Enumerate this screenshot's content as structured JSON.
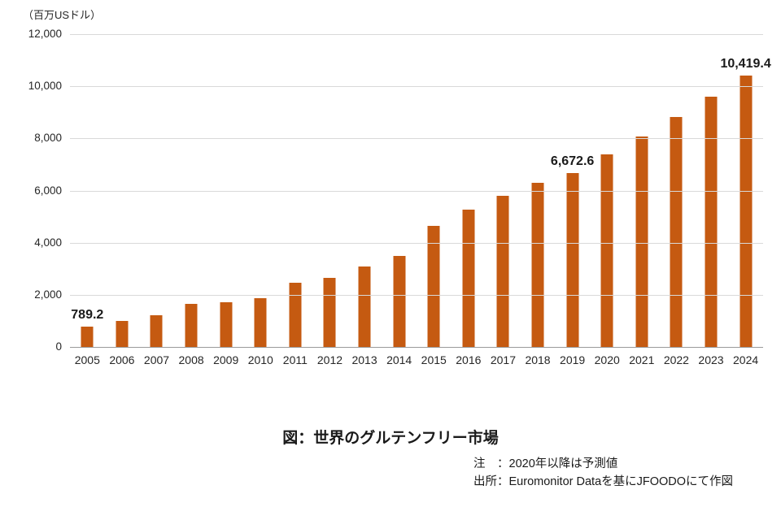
{
  "chart_data": {
    "type": "bar",
    "title": "図：世界のグルテンフリー市場",
    "unit_label": "（百万USドル）",
    "xlabel": "",
    "ylabel": "百万USドル",
    "categories": [
      "2005",
      "2006",
      "2007",
      "2008",
      "2009",
      "2010",
      "2011",
      "2012",
      "2013",
      "2014",
      "2015",
      "2016",
      "2017",
      "2018",
      "2019",
      "2020",
      "2021",
      "2022",
      "2023",
      "2024"
    ],
    "values": [
      789.2,
      1003,
      1225,
      1650,
      1715,
      1870,
      2460,
      2650,
      3080,
      3500,
      4660,
      5260,
      5790,
      6310,
      6672.6,
      7390,
      8080,
      8820,
      9610,
      10419.4
    ],
    "data_labels": {
      "2005": "789.2",
      "2019": "6,672.6",
      "2024": "10,419.4"
    },
    "ylim": [
      0,
      12000
    ],
    "ytick_step": 2000,
    "grid": "horizontal",
    "legend": "none",
    "bar_color": "#C55A11",
    "notes": [
      "注　：2020年以降は予測値",
      "出所：Euromonitor Dataを基にJFOODOにて作図"
    ]
  }
}
